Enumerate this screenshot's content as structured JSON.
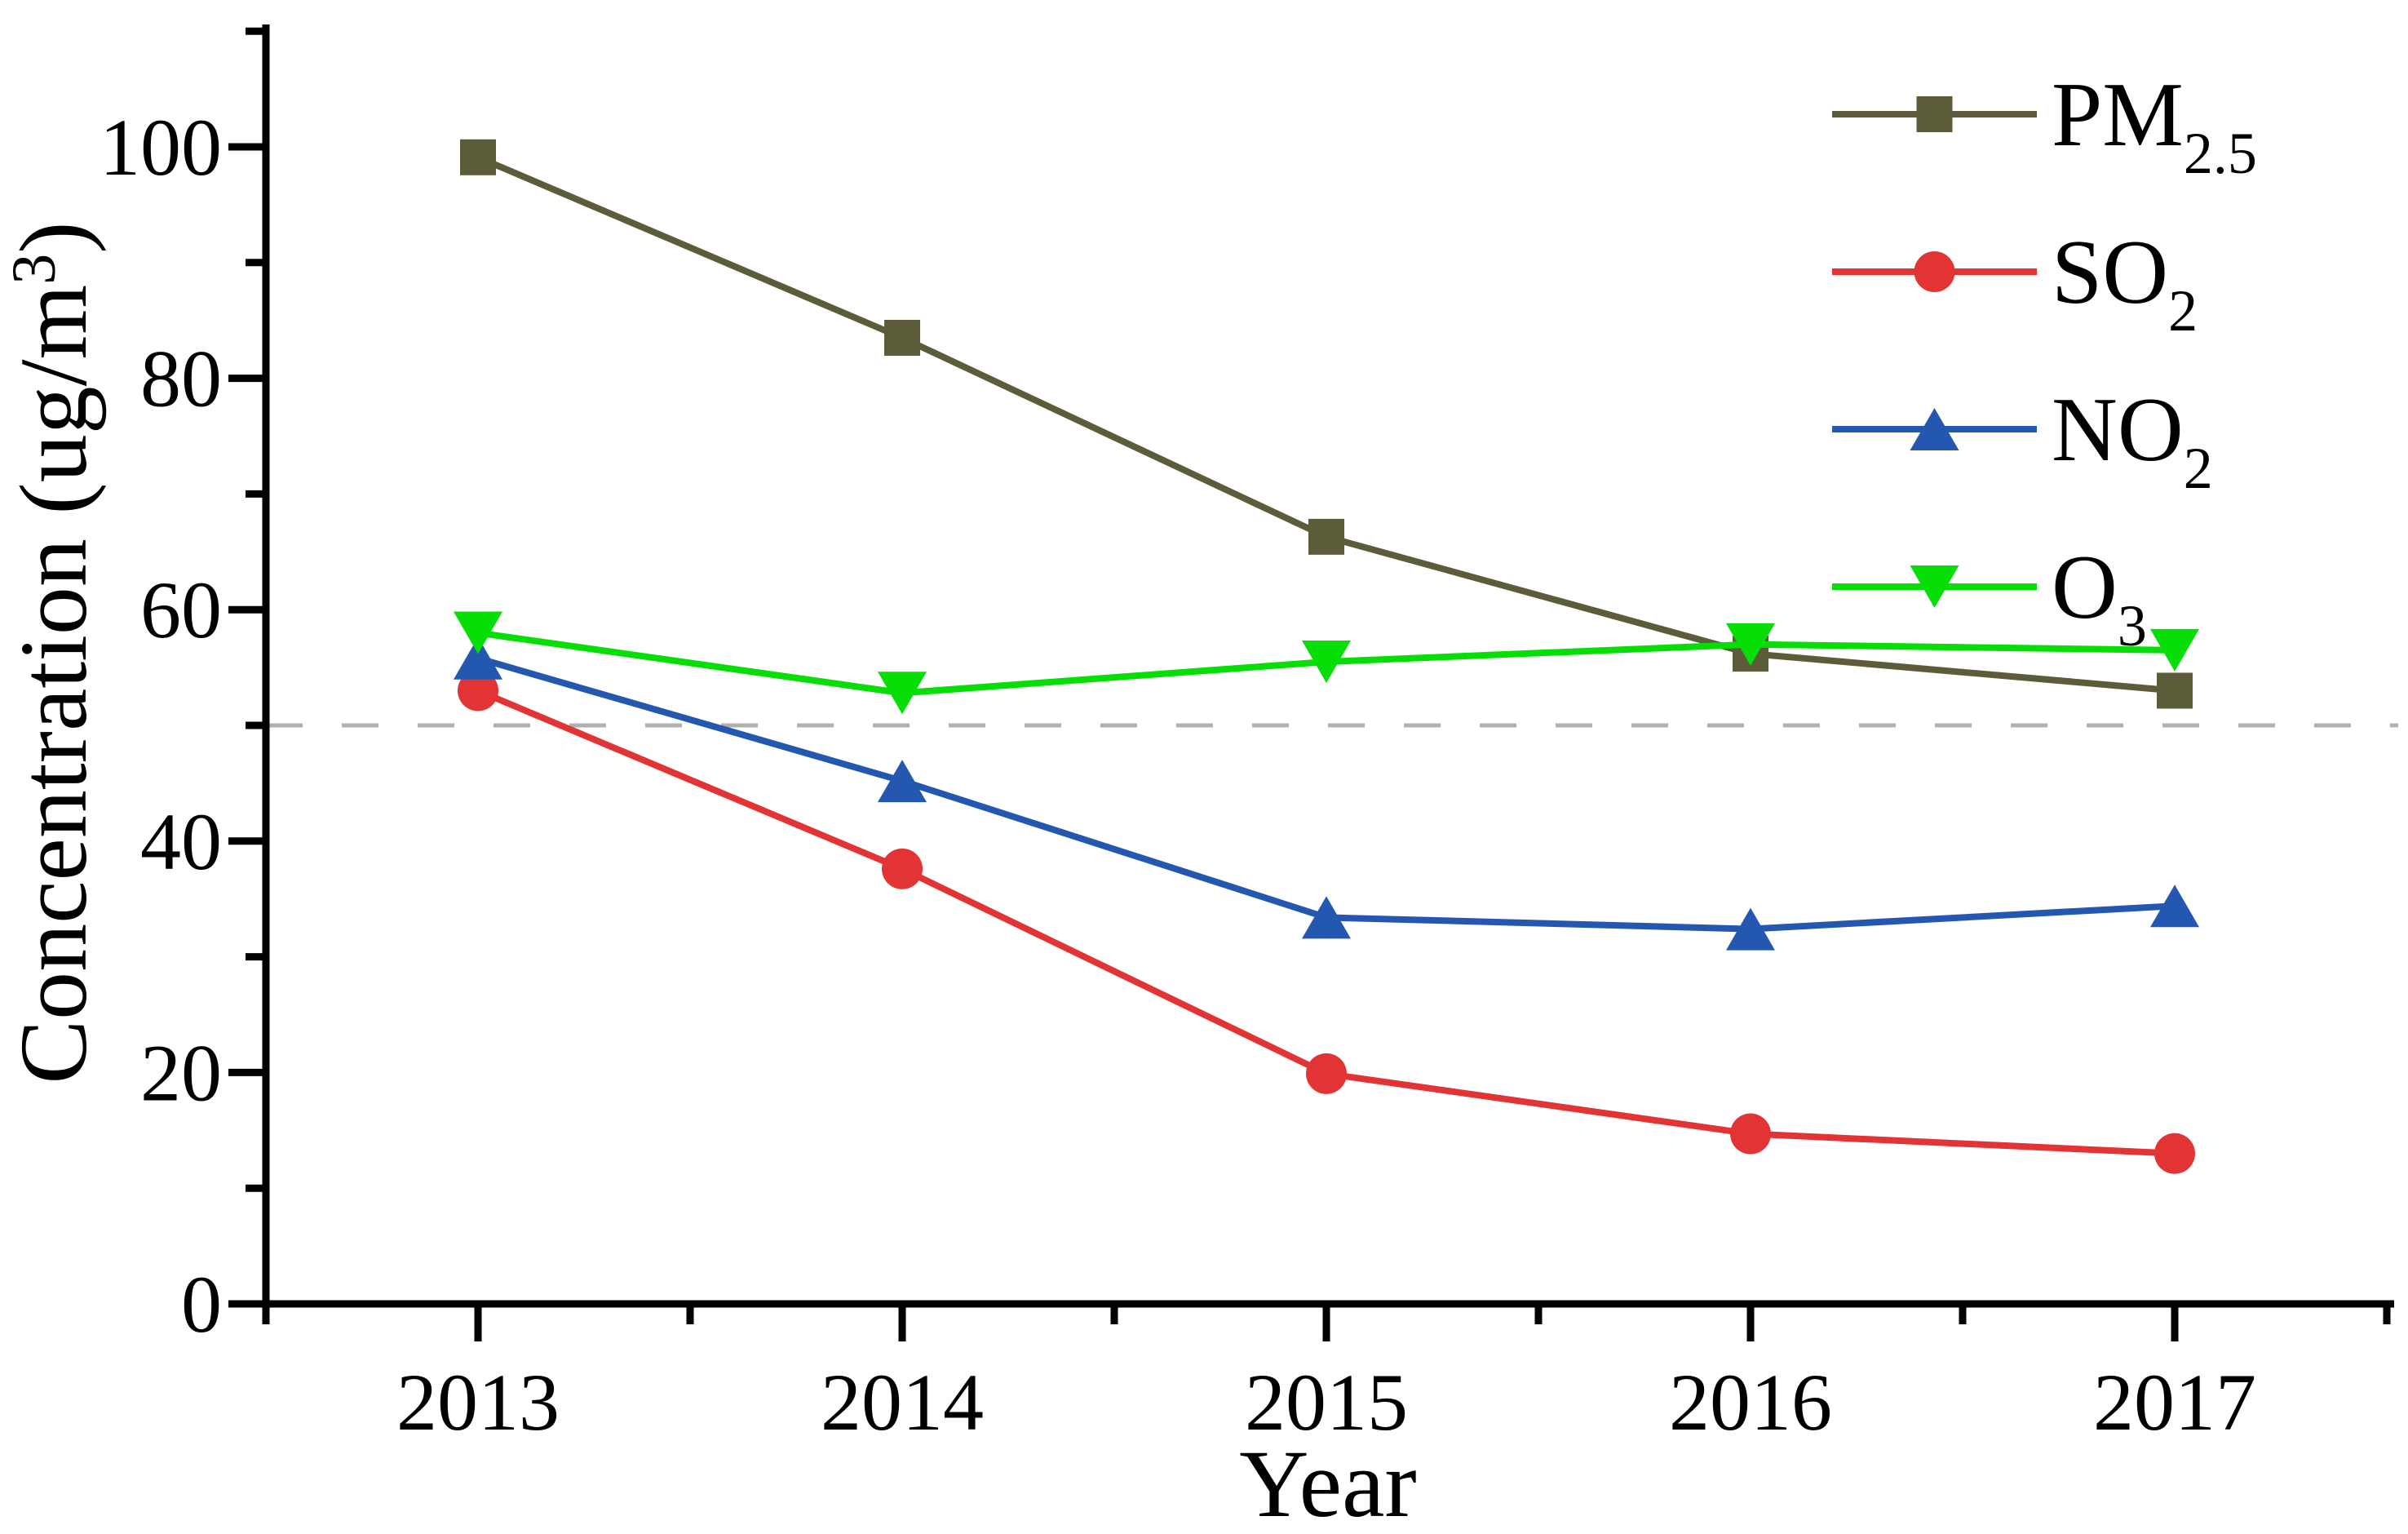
{
  "figure": {
    "background": "#ffffff",
    "text_color": "#000000",
    "axis_color": "#000000"
  },
  "chart_data": {
    "type": "line",
    "title": "",
    "xlabel": "Year",
    "ylabel": {
      "prefix": "Concentration (ug/m",
      "sup": "3",
      "suffix": ")"
    },
    "x": [
      "2013",
      "2014",
      "2015",
      "2016",
      "2017"
    ],
    "ylim": [
      0,
      110
    ],
    "yticks_major": [
      0,
      20,
      40,
      60,
      80,
      100
    ],
    "yticks_minor": [
      10,
      30,
      50,
      70,
      90,
      110
    ],
    "grid": false,
    "legend_position": "upper-right",
    "reference_line": {
      "y": 50,
      "style": "dashed",
      "color": "#b0b0b0"
    },
    "series": [
      {
        "name": "PM2.5",
        "label_base": "PM",
        "label_sub": "2.5",
        "marker": "square",
        "color": "#5C5C3A",
        "values": [
          99.1,
          83.5,
          66.3,
          56.2,
          53.0
        ]
      },
      {
        "name": "SO2",
        "label_base": "SO",
        "label_sub": "2",
        "marker": "circle",
        "color": "#E23434",
        "values": [
          53.0,
          37.6,
          19.9,
          14.7,
          13.0
        ]
      },
      {
        "name": "NO2",
        "label_base": "NO",
        "label_sub": "2",
        "marker": "triangle-up",
        "color": "#2457B0",
        "values": [
          55.8,
          45.2,
          33.4,
          32.4,
          34.4
        ]
      },
      {
        "name": "O3",
        "label_base": "O",
        "label_sub": "3",
        "marker": "triangle-down",
        "color": "#07DD07",
        "values": [
          58.0,
          52.8,
          55.5,
          57.0,
          56.5
        ]
      }
    ]
  }
}
